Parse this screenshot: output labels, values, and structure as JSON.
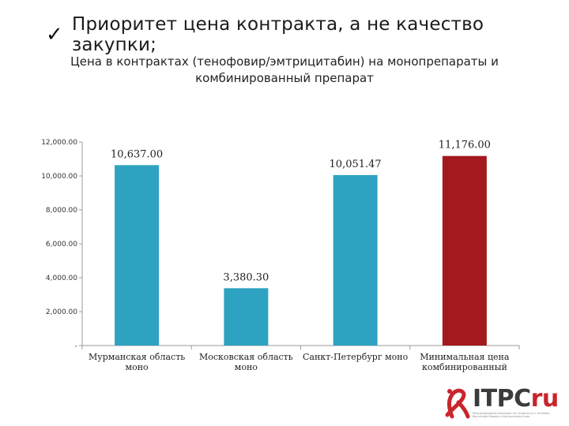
{
  "heading": {
    "check": "✓",
    "text": "Приоритет цена контракта, а не качество закупки;"
  },
  "chart_data": {
    "type": "bar",
    "title": "Цена в контрактах (тенофовир/эмтрицитабин) на монопрепараты и комбинированный препарат",
    "categories": [
      [
        "Мурманская область",
        "моно"
      ],
      [
        "Московская область",
        "моно"
      ],
      [
        "Санкт-Петербург моно"
      ],
      [
        "Минимальная цена",
        "комбинированный"
      ]
    ],
    "values": [
      10637.0,
      3380.3,
      10051.47,
      11176.0
    ],
    "data_labels": [
      "10,637.00",
      "3,380.30",
      "10,051.47",
      "11,176.00"
    ],
    "colors": [
      "#2ea3c1",
      "#2ea3c1",
      "#2ea3c1",
      "#a3191e"
    ],
    "ylim": [
      0,
      12000
    ],
    "yticks": [
      0,
      2000,
      4000,
      6000,
      8000,
      10000,
      12000
    ],
    "ytick_labels": [
      "-",
      "2,000.00",
      "4,000.00",
      "6,000.00",
      "8,000.00",
      "10,000.00",
      "12,000.00"
    ],
    "grid": false,
    "xlabel": "",
    "ylabel": ""
  },
  "logo": {
    "brand": "ITPC",
    "suffix": "ru",
    "tagline": [
      "Международная коалиция по готовности к лечению",
      "Восточная Европа и Центральная Азия"
    ],
    "ribbon_color": "#c9252c"
  }
}
